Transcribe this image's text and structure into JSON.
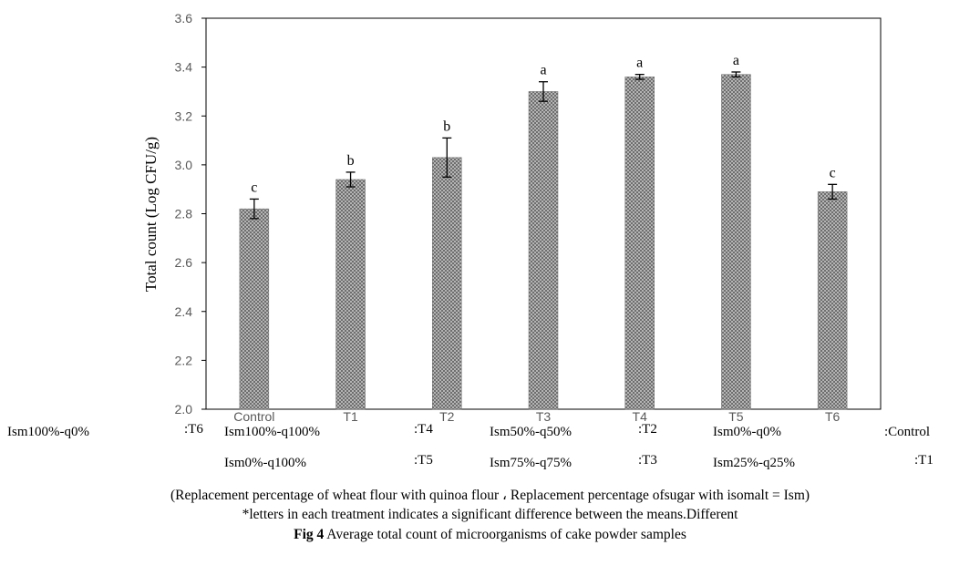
{
  "chart_data": {
    "type": "bar",
    "categories": [
      "Control",
      "T1",
      "T2",
      "T3",
      "T4",
      "T5",
      "T6"
    ],
    "values": [
      2.82,
      2.94,
      3.03,
      3.3,
      3.36,
      3.37,
      2.89
    ],
    "errors": [
      0.04,
      0.03,
      0.08,
      0.04,
      0.01,
      0.01,
      0.03
    ],
    "significance": [
      "c",
      "b",
      "b",
      "a",
      "a",
      "a",
      "c"
    ],
    "ylabel": "Total count (Log CFU/g)",
    "xlabel": "",
    "ylim": [
      2.0,
      3.6
    ],
    "yticks": [
      "2.0",
      "2.2",
      "2.4",
      "2.6",
      "2.8",
      "3.0",
      "3.2",
      "3.4",
      "3.6"
    ],
    "grid": false,
    "bar_color": "#8c8c8c"
  },
  "legend": {
    "row1": [
      {
        "value": "Ism100%-q0%",
        "key": ":T6"
      },
      {
        "value": "Ism100%-q100%",
        "key": ":T4"
      },
      {
        "value": "Ism50%-q50%",
        "key": ":T2"
      },
      {
        "value": "Ism0%-q0%",
        "key": ":Control"
      }
    ],
    "row2": [
      {
        "value": "Ism0%-q100%",
        "key": ":T5"
      },
      {
        "value": "Ism75%-q75%",
        "key": ":T3"
      },
      {
        "value": "Ism25%-q25%",
        "key": ":T1"
      }
    ]
  },
  "caption": {
    "line1": "(Replacement percentage of wheat flour with quinoa flour ، Replacement percentage ofsugar with isomalt = Ism)",
    "line2": "*letters in each treatment indicates a significant difference between the means.Different",
    "fig_label": "Fig 4",
    "fig_text": " Average total count of microorganisms of cake powder samples"
  }
}
